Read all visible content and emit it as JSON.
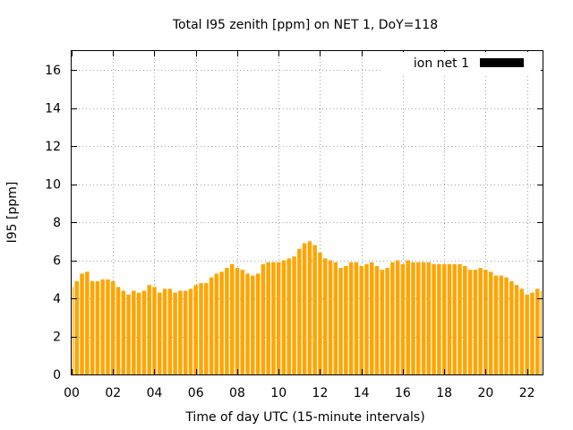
{
  "chart_data": {
    "type": "bar",
    "title": "Total I95 zenith [ppm] on NET 1, DoY=118",
    "xlabel": "Time of day UTC (15-minute intervals)",
    "ylabel": "I95 [ppm]",
    "xlim": [
      0,
      22.75
    ],
    "ylim": [
      0,
      17
    ],
    "x_ticks": [
      "00",
      "02",
      "04",
      "06",
      "08",
      "10",
      "12",
      "14",
      "16",
      "18",
      "20",
      "22"
    ],
    "y_ticks": [
      "0",
      "2",
      "4",
      "6",
      "8",
      "10",
      "12",
      "14",
      "16"
    ],
    "grid": true,
    "legend_position": "top-right",
    "series": [
      {
        "name": "ion net 1",
        "color": "#ffa500",
        "legend_swatch_color": "#000000",
        "values": [
          4.6,
          4.9,
          5.3,
          5.4,
          4.9,
          4.9,
          5.0,
          5.0,
          4.9,
          4.6,
          4.4,
          4.2,
          4.4,
          4.3,
          4.4,
          4.7,
          4.6,
          4.3,
          4.5,
          4.5,
          4.3,
          4.4,
          4.4,
          4.5,
          4.7,
          4.8,
          4.8,
          5.1,
          5.3,
          5.4,
          5.6,
          5.8,
          5.6,
          5.5,
          5.3,
          5.2,
          5.3,
          5.8,
          5.9,
          5.9,
          5.9,
          6.0,
          6.1,
          6.2,
          6.6,
          6.9,
          7.0,
          6.8,
          6.4,
          6.1,
          6.0,
          5.9,
          5.6,
          5.7,
          5.9,
          5.9,
          5.7,
          5.8,
          5.9,
          5.7,
          5.5,
          5.6,
          5.9,
          6.0,
          5.8,
          6.0,
          5.9,
          5.9,
          5.9,
          5.9,
          5.8,
          5.8,
          5.8,
          5.8,
          5.8,
          5.8,
          5.7,
          5.5,
          5.5,
          5.6,
          5.5,
          5.4,
          5.2,
          5.2,
          5.1,
          4.9,
          4.7,
          4.5,
          4.2,
          4.3,
          4.5,
          4.4
        ]
      }
    ]
  }
}
